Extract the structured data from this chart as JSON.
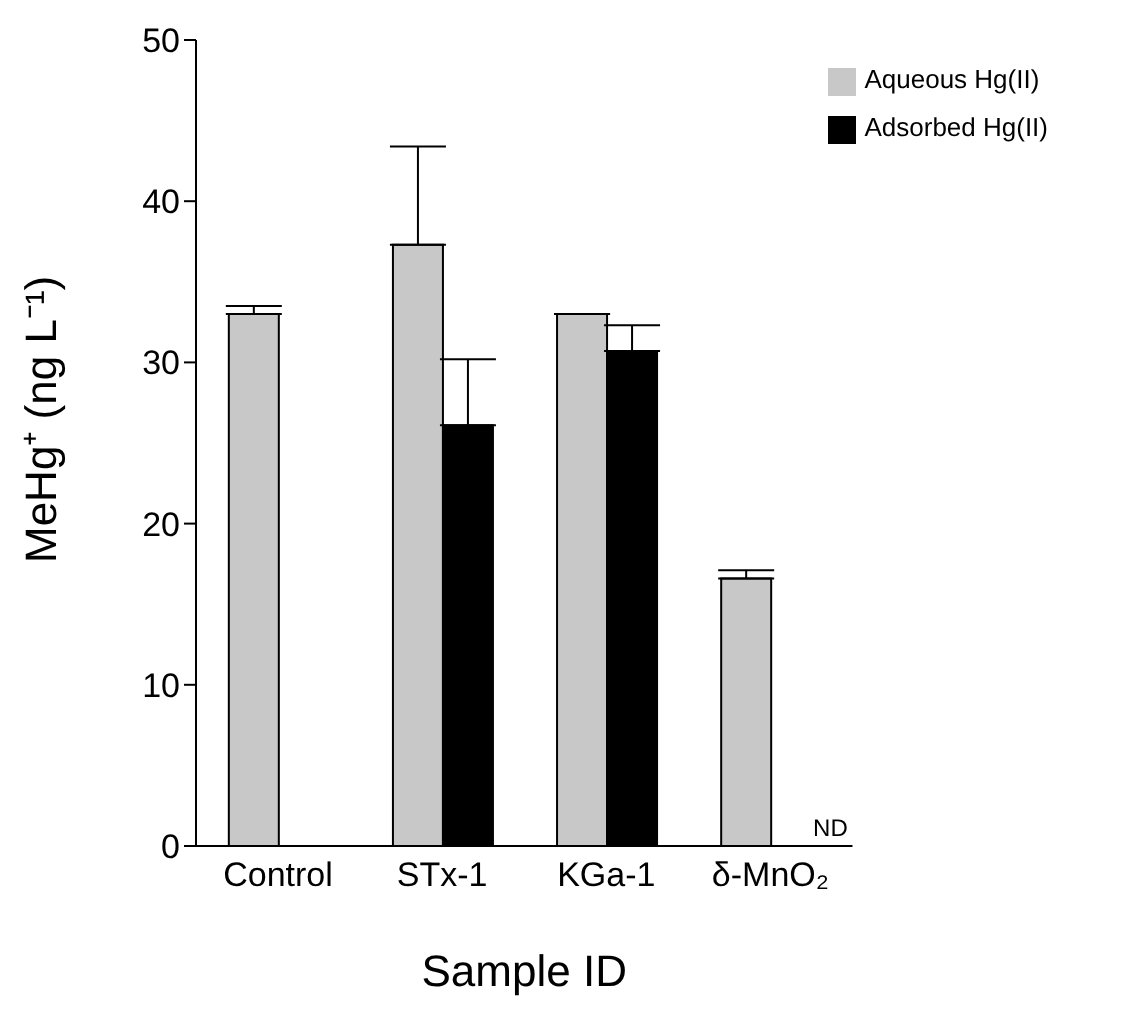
{
  "chart_data": {
    "type": "bar",
    "xlabel": "Sample ID",
    "ylabel": "MeHg⁺ (ng L⁻¹)",
    "categories": [
      "Control",
      "STx-1",
      "KGa-1",
      "δ-MnO₂"
    ],
    "series": [
      {
        "name": "Aqueous Hg(II)",
        "color": "#c8c8c8",
        "values": [
          33,
          37.3,
          33,
          16.6
        ],
        "errors": [
          [
            33,
            33.5
          ],
          [
            37.3,
            43.4
          ],
          null,
          [
            16.6,
            17.1
          ]
        ]
      },
      {
        "name": "Adsorbed Hg(II)",
        "color": "#000000",
        "values": [
          null,
          26.1,
          30.7,
          null
        ],
        "errors": [
          null,
          [
            26.1,
            30.2
          ],
          [
            30.7,
            32.3
          ],
          null
        ]
      }
    ],
    "ylim": [
      0,
      50
    ],
    "yticks": [
      0,
      10,
      20,
      30,
      40,
      50
    ],
    "legend": "top right",
    "annotations": [
      {
        "text": "ND",
        "x": "δ-MnO₂",
        "y": 0
      }
    ]
  }
}
